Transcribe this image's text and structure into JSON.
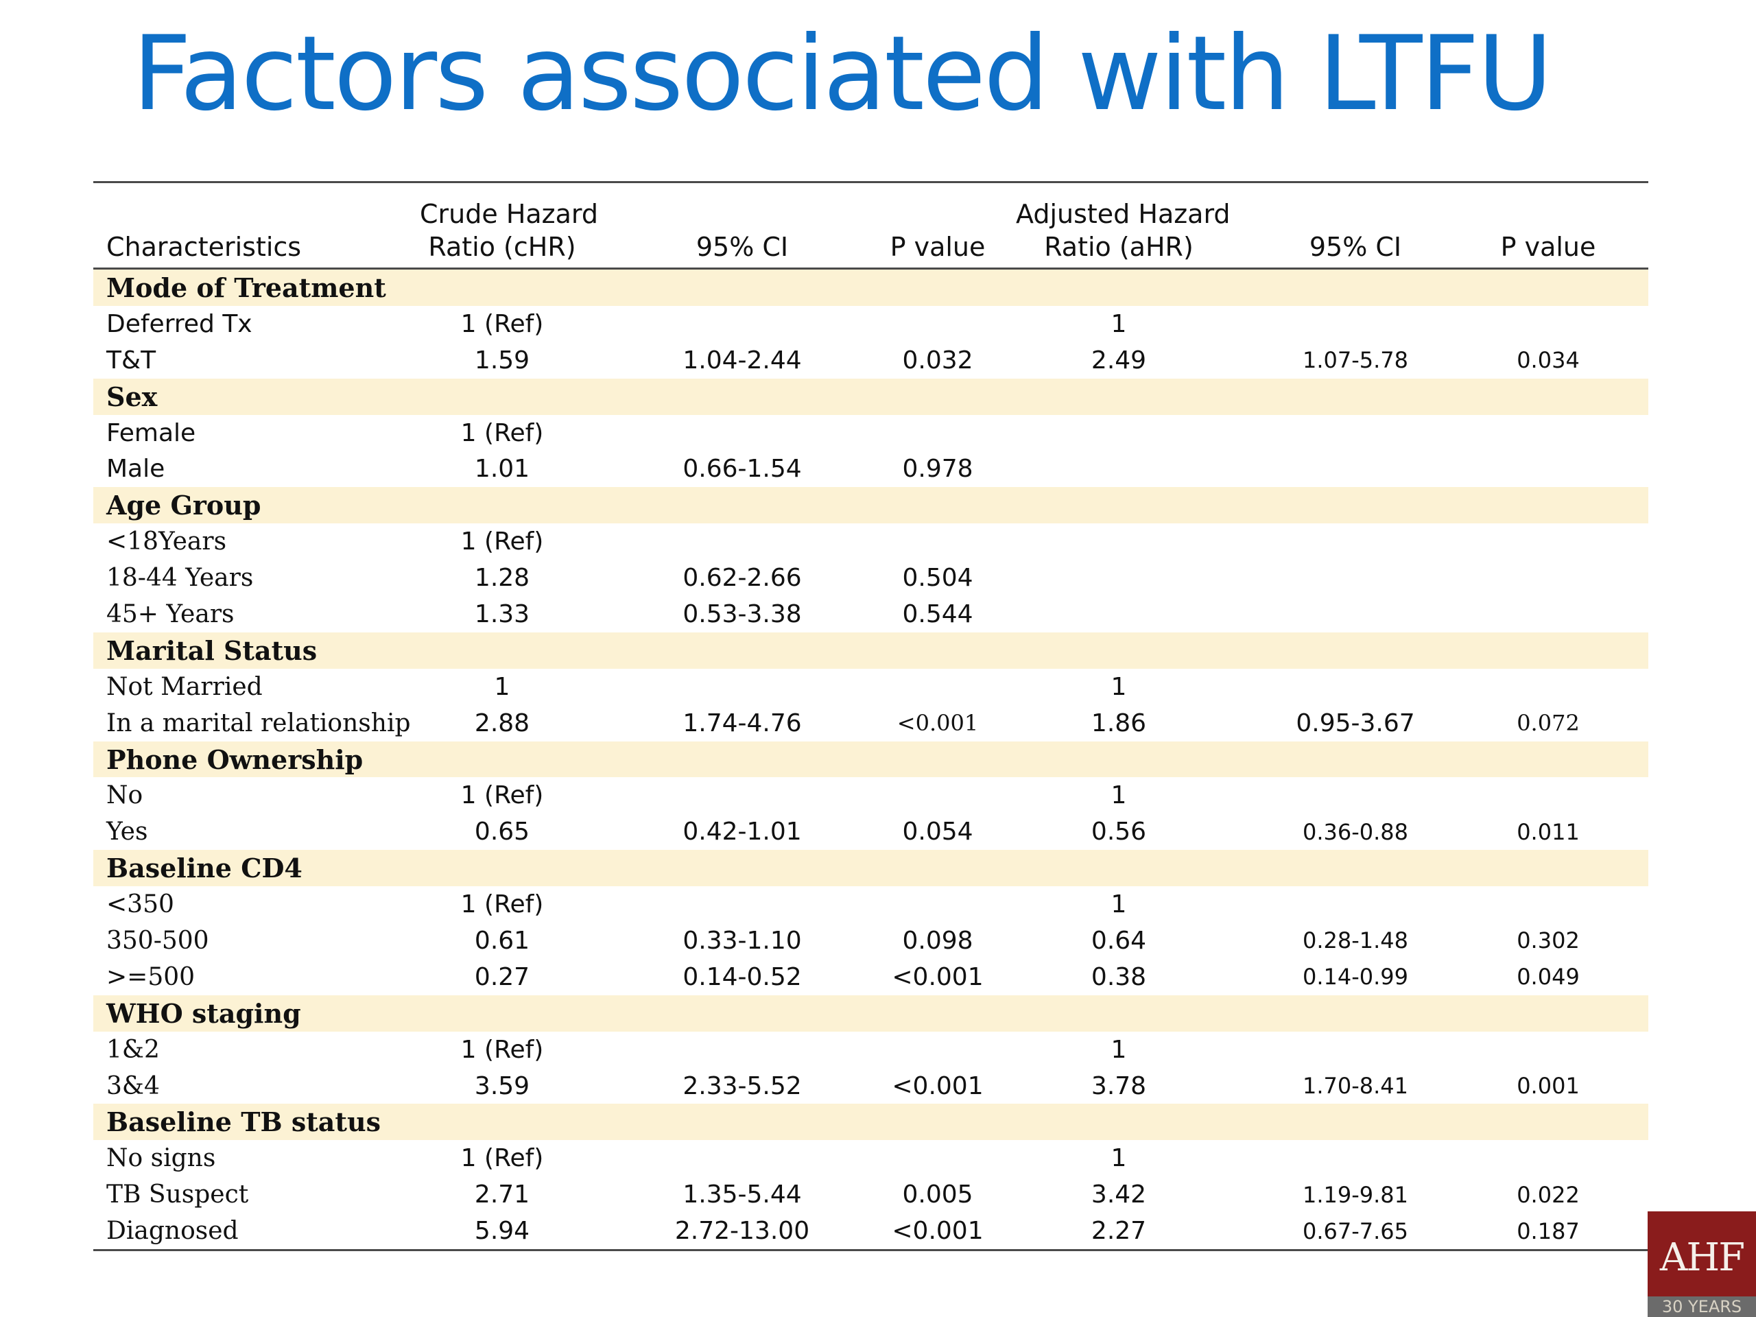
{
  "title": "Factors associated with LTFU",
  "table": {
    "headers": [
      "Characteristics",
      "Crude Hazard\nRatio (cHR)",
      "95% CI",
      "P value",
      "Adjusted Hazard\nRatio (aHR)",
      "95% CI",
      "P value"
    ],
    "rows": [
      {
        "section": "Mode of Treatment"
      },
      {
        "cells": [
          "Deferred Tx",
          "1 (Ref)",
          "",
          "",
          "1",
          "",
          ""
        ]
      },
      {
        "cells": [
          "T&T",
          "1.59",
          "1.04-2.44",
          "0.032",
          "2.49",
          "1.07-5.78",
          "0.034"
        ]
      },
      {
        "section": "Sex"
      },
      {
        "cells": [
          "Female",
          "1 (Ref)",
          "",
          "",
          "",
          "",
          ""
        ]
      },
      {
        "cells": [
          "Male",
          "1.01",
          "0.66-1.54",
          "0.978",
          "",
          "",
          ""
        ]
      },
      {
        "section": "Age Group"
      },
      {
        "cells": [
          "<18Years",
          "1 (Ref)",
          "",
          "",
          "",
          "",
          ""
        ],
        "serif": true
      },
      {
        "cells": [
          "18-44 Years",
          "1.28",
          "0.62-2.66",
          "0.504",
          "",
          "",
          ""
        ],
        "serif": true
      },
      {
        "cells": [
          "45+ Years",
          "1.33",
          "0.53-3.38",
          "0.544",
          "",
          "",
          ""
        ],
        "serif": true
      },
      {
        "section": "Marital Status"
      },
      {
        "cells": [
          "Not Married",
          "1",
          "",
          "",
          "1",
          "",
          ""
        ],
        "serif": true
      },
      {
        "cells": [
          "In a marital relationship",
          "2.88",
          "1.74-4.76",
          "<0.001",
          "1.86",
          "0.95-3.67",
          "0.072"
        ],
        "serif": true
      },
      {
        "section": "Phone Ownership"
      },
      {
        "cells": [
          "No",
          "1 (Ref)",
          "",
          "",
          "1",
          "",
          ""
        ],
        "serif": true
      },
      {
        "cells": [
          "Yes",
          "0.65",
          "0.42-1.01",
          "0.054",
          "0.56",
          "0.36-0.88",
          "0.011"
        ],
        "serif": true
      },
      {
        "section": "Baseline CD4"
      },
      {
        "cells": [
          "<350",
          "1 (Ref)",
          "",
          "",
          "1",
          "",
          ""
        ],
        "serif": true
      },
      {
        "cells": [
          "350-500",
          "0.61",
          "0.33-1.10",
          "0.098",
          "0.64",
          "0.28-1.48",
          "0.302"
        ],
        "serif": true
      },
      {
        "cells": [
          ">=500",
          "0.27",
          "0.14-0.52",
          "<0.001",
          "0.38",
          "0.14-0.99",
          "0.049"
        ],
        "serif": true
      },
      {
        "section": "WHO staging"
      },
      {
        "cells": [
          "1&2",
          "1 (Ref)",
          "",
          "",
          "1",
          "",
          ""
        ],
        "serif": true
      },
      {
        "cells": [
          "3&4",
          "3.59",
          "2.33-5.52",
          "<0.001",
          "3.78",
          "1.70-8.41",
          "0.001"
        ],
        "serif": true
      },
      {
        "section": "Baseline TB status"
      },
      {
        "cells": [
          "No signs",
          "1 (Ref)",
          "",
          "",
          "1",
          "",
          ""
        ],
        "serif": true
      },
      {
        "cells": [
          "TB Suspect",
          "2.71",
          "1.35-5.44",
          "0.005",
          "3.42",
          "1.19-9.81",
          "0.022"
        ],
        "serif": true
      },
      {
        "cells": [
          "Diagnosed",
          "5.94",
          "2.72-13.00",
          "<0.001",
          "2.27",
          "0.67-7.65",
          "0.187"
        ],
        "serif": true
      }
    ]
  },
  "logo": {
    "text": "AHF",
    "subtext": "30 YEARS",
    "color": "#8a1c1c"
  },
  "colors": {
    "title": "#0f6fc6",
    "section_band": "#fcf2d4",
    "rule": "#4a4a4a"
  }
}
